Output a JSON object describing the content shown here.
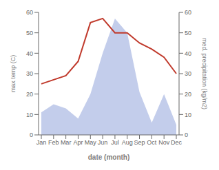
{
  "chart_data": {
    "type": "line",
    "categories": [
      "Jan",
      "Feb",
      "Mar",
      "Apr",
      "May",
      "Jun",
      "Jul",
      "Aug",
      "Sep",
      "Oct",
      "Nov",
      "Dec"
    ],
    "series": [
      {
        "type": "area",
        "color": "#b8c4e8",
        "values": [
          11,
          15,
          13,
          8,
          20,
          40,
          57,
          50,
          21,
          6,
          20,
          5
        ],
        "axis": "y2"
      },
      {
        "type": "line",
        "color": "#c0392b",
        "values": [
          25,
          27,
          29,
          36,
          55,
          57,
          50,
          50,
          45,
          42,
          38,
          30
        ]
      }
    ],
    "xlabel": "date (month)",
    "ylabel": "max temp (C)",
    "y2label": "med. precipitation (kg/m2)",
    "ylim": [
      0,
      60
    ],
    "yticks": [
      0,
      10,
      20,
      30,
      40,
      50,
      60
    ],
    "y2lim": [
      0,
      60
    ],
    "y2ticks": [
      0,
      10,
      20,
      30,
      40,
      50,
      60
    ],
    "grid": false
  }
}
